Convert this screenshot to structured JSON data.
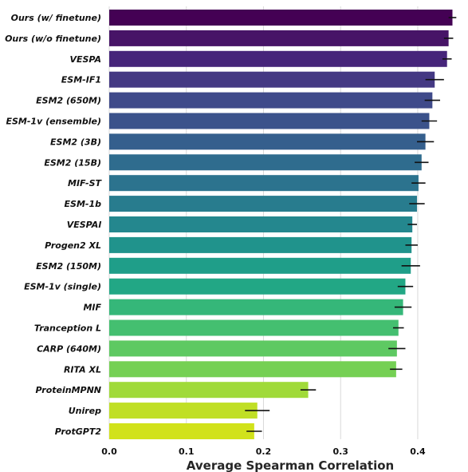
{
  "chart_data": {
    "type": "bar",
    "orientation": "horizontal",
    "xlabel": "Average Spearman Correlation",
    "xlim": [
      0.0,
      0.46
    ],
    "xticks": [
      "0.0",
      "0.1",
      "0.2",
      "0.3",
      "0.4"
    ],
    "grid": true,
    "legend": "none",
    "colormap": "viridis",
    "categories": [
      "Ours (w/ finetune)",
      "Ours (w/o finetune)",
      "VESPA",
      "ESM-IF1",
      "ESM2 (650M)",
      "ESM-1v (ensemble)",
      "ESM2 (3B)",
      "ESM2 (15B)",
      "MIF-ST",
      "ESM-1b",
      "VESPAl",
      "Progen2 XL",
      "ESM2 (150M)",
      "ESM-1v (single)",
      "MIF",
      "Tranception L",
      "CARP (640M)",
      "RITA XL",
      "ProteinMPNN",
      "Unirep",
      "ProtGPT2"
    ],
    "values": [
      0.445,
      0.44,
      0.438,
      0.422,
      0.419,
      0.415,
      0.41,
      0.405,
      0.401,
      0.399,
      0.393,
      0.392,
      0.391,
      0.384,
      0.381,
      0.375,
      0.373,
      0.372,
      0.258,
      0.192,
      0.188
    ],
    "errors": [
      0.005,
      0.006,
      0.006,
      0.012,
      0.01,
      0.01,
      0.011,
      0.009,
      0.009,
      0.01,
      0.006,
      0.008,
      0.012,
      0.01,
      0.011,
      0.007,
      0.011,
      0.008,
      0.01,
      0.016,
      0.01
    ],
    "colors": [
      "#440154",
      "#471467",
      "#46257a",
      "#443983",
      "#3f4a8a",
      "#3b528b",
      "#355f8d",
      "#2f6c8e",
      "#2c738e",
      "#287c8e",
      "#24878e",
      "#20938c",
      "#1f9e89",
      "#22a785",
      "#35b779",
      "#44bf70",
      "#5ec962",
      "#75d054",
      "#a0da39",
      "#c0df25",
      "#d1e21b"
    ]
  }
}
